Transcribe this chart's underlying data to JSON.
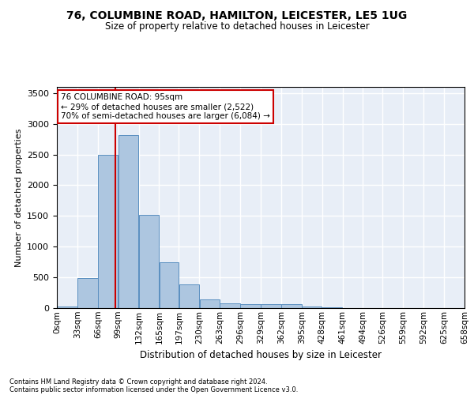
{
  "title1": "76, COLUMBINE ROAD, HAMILTON, LEICESTER, LE5 1UG",
  "title2": "Size of property relative to detached houses in Leicester",
  "xlabel": "Distribution of detached houses by size in Leicester",
  "ylabel": "Number of detached properties",
  "bar_color": "#adc6e0",
  "bar_edge_color": "#5a8fc0",
  "background_color": "#e8eef7",
  "grid_color": "#ffffff",
  "bins": [
    0,
    33,
    66,
    99,
    132,
    165,
    197,
    230,
    263,
    296,
    329,
    362,
    395,
    428,
    461,
    494,
    526,
    559,
    592,
    625,
    658
  ],
  "bin_labels": [
    "0sqm",
    "33sqm",
    "66sqm",
    "99sqm",
    "132sqm",
    "165sqm",
    "197sqm",
    "230sqm",
    "263sqm",
    "296sqm",
    "329sqm",
    "362sqm",
    "395sqm",
    "428sqm",
    "461sqm",
    "494sqm",
    "526sqm",
    "559sqm",
    "592sqm",
    "625sqm",
    "658sqm"
  ],
  "counts": [
    30,
    490,
    2500,
    2820,
    1520,
    750,
    390,
    145,
    80,
    65,
    65,
    60,
    30,
    10,
    5,
    2,
    1,
    1,
    0,
    0
  ],
  "property_sqm": 95,
  "vline_color": "#cc0000",
  "ylim": [
    0,
    3600
  ],
  "yticks": [
    0,
    500,
    1000,
    1500,
    2000,
    2500,
    3000,
    3500
  ],
  "annotation_text": "76 COLUMBINE ROAD: 95sqm\n← 29% of detached houses are smaller (2,522)\n70% of semi-detached houses are larger (6,084) →",
  "annotation_box_color": "#cc0000",
  "footer1": "Contains HM Land Registry data © Crown copyright and database right 2024.",
  "footer2": "Contains public sector information licensed under the Open Government Licence v3.0."
}
